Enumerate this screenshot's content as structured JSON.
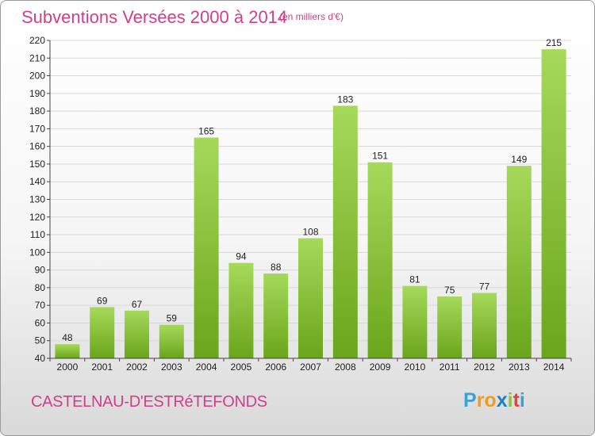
{
  "header": {
    "title": "Subventions Versées 2000 à 2014",
    "unit": "(en milliers d'€)"
  },
  "commune": "CASTELNAU-D'ESTRéTEFONDS",
  "logo": {
    "letters": [
      "P",
      "r",
      "o",
      "x",
      "i",
      "t",
      "i"
    ],
    "colors": [
      "#3aa0d8",
      "#f29a1d",
      "#f29a1d",
      "#1f7fc4",
      "#8ac43c",
      "#e8413c",
      "#3aa0d8"
    ]
  },
  "colors": {
    "bar_light": "#a6d95a",
    "bar_dark": "#6aa51b",
    "grid": "#d8d8d8",
    "axis": "#444444"
  },
  "chart_data": {
    "type": "bar",
    "categories": [
      "2000",
      "2001",
      "2002",
      "2003",
      "2004",
      "2005",
      "2006",
      "2007",
      "2008",
      "2009",
      "2010",
      "2011",
      "2012",
      "2013",
      "2014"
    ],
    "values": [
      48,
      69,
      67,
      59,
      165,
      94,
      88,
      108,
      183,
      151,
      81,
      75,
      77,
      149,
      215
    ],
    "ylim": [
      40,
      220
    ],
    "yticks": [
      40,
      50,
      60,
      70,
      80,
      90,
      100,
      110,
      120,
      130,
      140,
      150,
      160,
      170,
      180,
      190,
      200,
      210,
      220
    ],
    "grid": true,
    "data_labels": true
  }
}
